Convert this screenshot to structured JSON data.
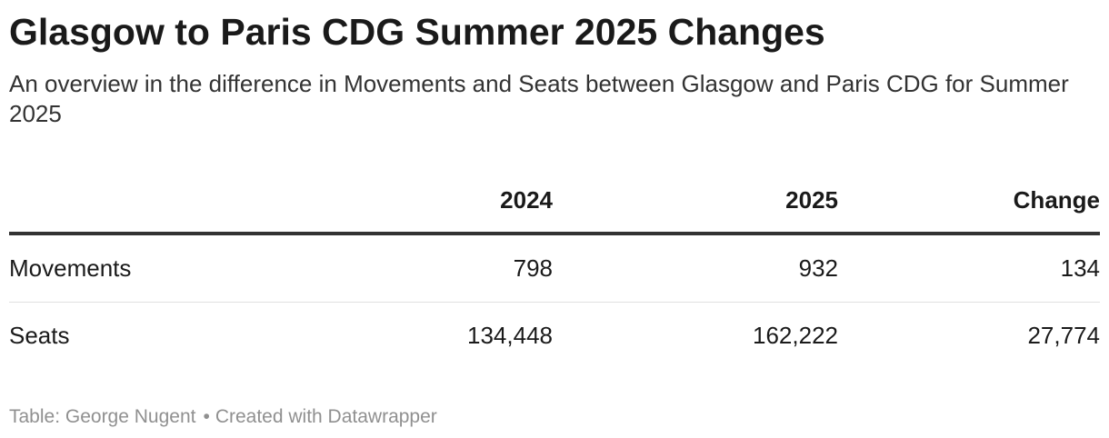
{
  "header": {
    "title": "Glasgow to Paris CDG Summer 2025 Changes",
    "subtitle": "An overview in the difference in Movements and Seats between Glasgow and Paris CDG for Summer 2025"
  },
  "chart_data": {
    "type": "table",
    "columns": [
      "",
      "2024",
      "2025",
      "Change"
    ],
    "rows": [
      {
        "label": "Movements",
        "v2024": "798",
        "v2025": "932",
        "change": "134"
      },
      {
        "label": "Seats",
        "v2024": "134,448",
        "v2025": "162,222",
        "change": "27,774"
      }
    ]
  },
  "footer": {
    "source": "Table: George Nugent",
    "separator": "•",
    "credit": "Created with Datawrapper"
  },
  "colors": {
    "text": "#1a1a1a",
    "header_rule": "#333333",
    "row_rule": "#e0e0e0",
    "footer_text": "#909090"
  }
}
